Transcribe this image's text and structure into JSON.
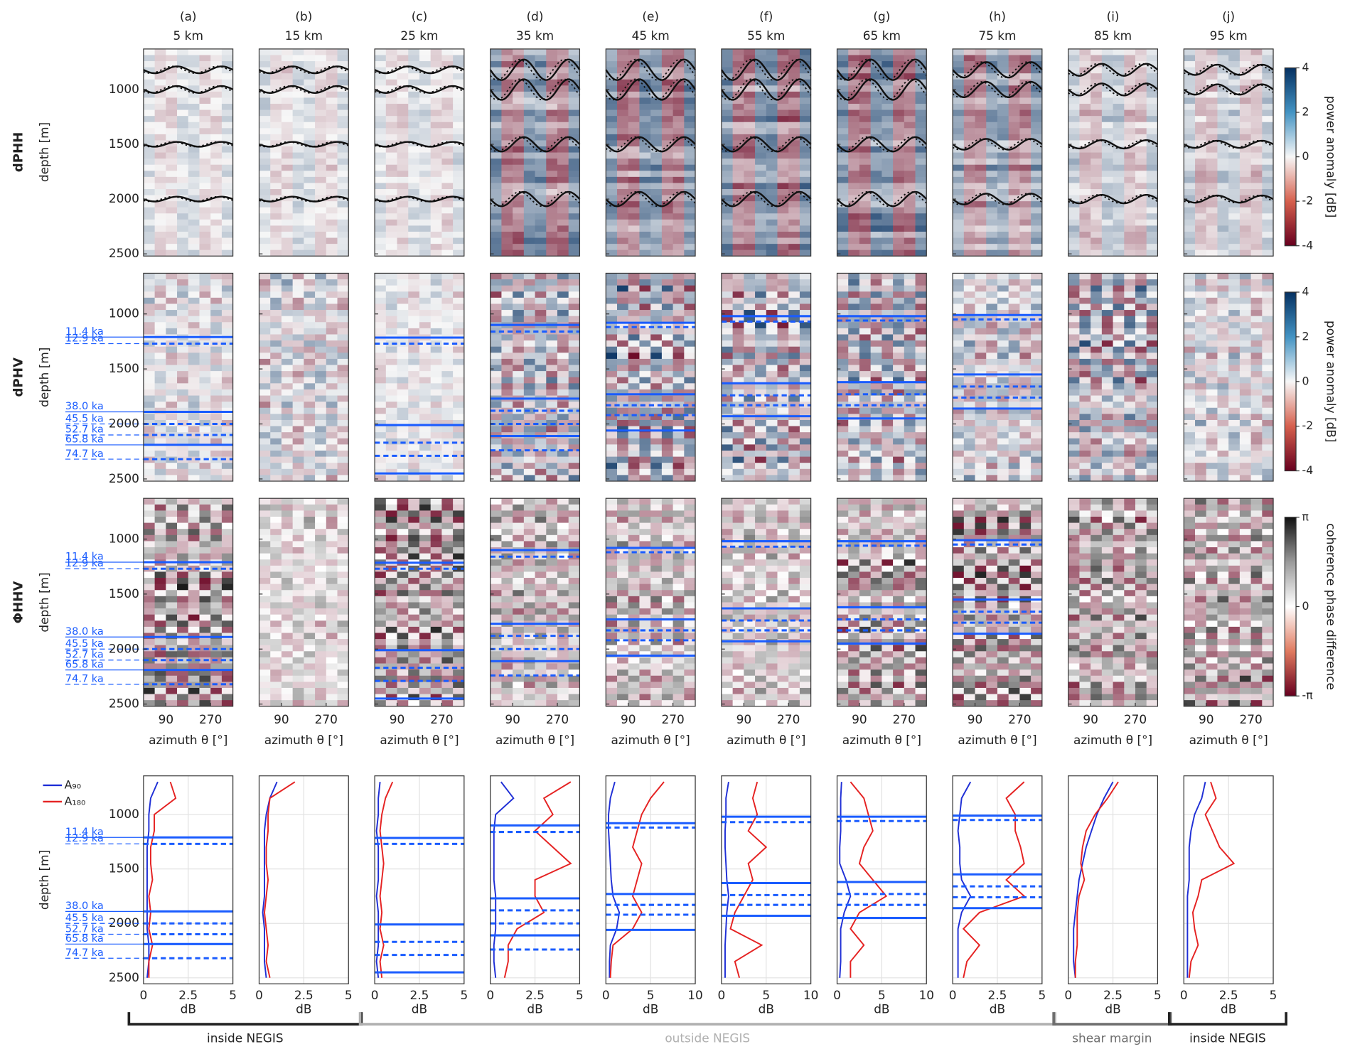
{
  "chart_data": {
    "type": "panel-grid",
    "ylabel": "depth [m]",
    "ylim": [
      630,
      2520
    ],
    "yticks": [
      1000,
      1500,
      2000,
      2500
    ],
    "profile_ylim": [
      645,
      2555
    ],
    "azimuth_xlim": [
      0,
      360
    ],
    "azimuth_xticks": [
      90,
      270
    ],
    "azimuth_label": "azimuth θ [°]",
    "profile_xlabel": "dB",
    "depths": [
      700,
      850,
      1000,
      1150,
      1300,
      1450,
      1600,
      1750,
      1900,
      2050,
      2200,
      2350,
      2500
    ],
    "series_names": [
      {
        "name": "A₉₀",
        "color": "#1f2fd6"
      },
      {
        "name": "A₁₈₀",
        "color": "#e52222"
      }
    ],
    "rows": [
      {
        "title": "dPHH",
        "colorbar_label": "power anomaly [dB]",
        "clim": [
          -4,
          4
        ],
        "cticks": [
          4,
          2,
          0,
          -2,
          -4
        ]
      },
      {
        "title": "dPHV",
        "colorbar_label": "power anomaly [dB]",
        "clim": [
          -4,
          4
        ],
        "cticks": [
          4,
          2,
          0,
          -2,
          -4
        ]
      },
      {
        "title": "ΦHHV",
        "colorbar_label": "coherence phase difference",
        "clim": [
          -3.141593,
          3.141593
        ],
        "cticks": [
          {
            "value": 3.141593,
            "label": "π"
          },
          0,
          {
            "value": -3.141593,
            "label": "-π"
          }
        ]
      }
    ],
    "regions": [
      {
        "label": "inside NEGIS",
        "color": "#222222"
      },
      {
        "label": "outside NEGIS",
        "color": "#b0b0b0"
      },
      {
        "label": "shear margin",
        "color": "#6e6e6e"
      },
      {
        "label": "inside NEGIS",
        "color": "#222222"
      }
    ],
    "columns": [
      {
        "label": "(a)",
        "distance": "5 km",
        "xlim": [
          0,
          5
        ],
        "xticks": [
          0,
          2.5,
          5
        ],
        "horizons": [
          {
            "depth": 1210,
            "style": "solid",
            "label": "11.4 ka"
          },
          {
            "depth": 1270,
            "style": "dashed",
            "label": "12.9 ka"
          },
          {
            "depth": 1890,
            "style": "solid",
            "label": "38.0 ka"
          },
          {
            "depth": 2000,
            "style": "dashed",
            "label": "45.5 ka"
          },
          {
            "depth": 2100,
            "style": "dashed",
            "label": "52.7 ka"
          },
          {
            "depth": 2190,
            "style": "solid",
            "label": "65.8 ka"
          },
          {
            "depth": 2320,
            "style": "dashed",
            "label": "74.7 ka"
          }
        ],
        "series": [
          {
            "values": [
              0.8,
              0.4,
              0.3,
              0.3,
              0.2,
              0.2,
              0.2,
              0.2,
              0.2,
              0.2,
              0.3,
              0.3,
              0.2
            ]
          },
          {
            "values": [
              1.5,
              1.8,
              0.6,
              0.6,
              0.4,
              0.4,
              0.5,
              0.3,
              0.4,
              0.3,
              0.5,
              0.3,
              0.3
            ]
          }
        ]
      },
      {
        "label": "(b)",
        "distance": "15 km",
        "xlim": [
          0,
          5
        ],
        "xticks": [
          0,
          2.5,
          5
        ],
        "horizons": [],
        "series": [
          {
            "values": [
              1.0,
              0.6,
              0.4,
              0.3,
              0.3,
              0.3,
              0.3,
              0.3,
              0.2,
              0.3,
              0.3,
              0.3,
              0.4
            ]
          },
          {
            "values": [
              2.0,
              0.6,
              0.5,
              0.5,
              0.4,
              0.4,
              0.5,
              0.4,
              0.3,
              0.4,
              0.5,
              0.4,
              0.6
            ]
          }
        ]
      },
      {
        "label": "(c)",
        "distance": "25 km",
        "xlim": [
          0,
          5
        ],
        "xticks": [
          0,
          2.5,
          5
        ],
        "horizons": [
          {
            "depth": 1215,
            "style": "solid"
          },
          {
            "depth": 1270,
            "style": "dashed"
          },
          {
            "depth": 2010,
            "style": "solid"
          },
          {
            "depth": 2170,
            "style": "dashed"
          },
          {
            "depth": 2290,
            "style": "dashed"
          },
          {
            "depth": 2450,
            "style": "solid"
          }
        ],
        "series": [
          {
            "values": [
              0.3,
              0.2,
              0.2,
              0.1,
              0.2,
              0.2,
              0.2,
              0.1,
              0.2,
              0.2,
              0.2,
              0.1,
              0.2
            ]
          },
          {
            "values": [
              1.0,
              0.6,
              0.4,
              0.3,
              0.4,
              0.5,
              0.4,
              0.3,
              0.4,
              0.3,
              0.5,
              0.3,
              0.4
            ]
          }
        ]
      },
      {
        "label": "(d)",
        "distance": "35 km",
        "xlim": [
          0,
          5
        ],
        "xticks": [
          0,
          2.5,
          5
        ],
        "horizons": [
          {
            "depth": 1100,
            "style": "solid"
          },
          {
            "depth": 1160,
            "style": "dashed"
          },
          {
            "depth": 1770,
            "style": "solid"
          },
          {
            "depth": 1880,
            "style": "dashed"
          },
          {
            "depth": 2000,
            "style": "dashed"
          },
          {
            "depth": 2110,
            "style": "solid"
          },
          {
            "depth": 2240,
            "style": "dashed"
          }
        ],
        "series": [
          {
            "values": [
              0.6,
              1.3,
              0.3,
              0.2,
              0.2,
              0.2,
              0.2,
              0.3,
              0.3,
              0.3,
              0.2,
              0.2,
              0.3
            ]
          },
          {
            "values": [
              4.5,
              3.0,
              3.5,
              2.5,
              3.5,
              4.5,
              2.5,
              2.5,
              3.0,
              1.5,
              1.0,
              1.0,
              0.8
            ]
          }
        ]
      },
      {
        "label": "(e)",
        "distance": "45 km",
        "xlim": [
          0,
          10
        ],
        "xticks": [
          0,
          5,
          10
        ],
        "horizons": [
          {
            "depth": 1080,
            "style": "solid"
          },
          {
            "depth": 1120,
            "style": "dashed"
          },
          {
            "depth": 1730,
            "style": "solid"
          },
          {
            "depth": 1830,
            "style": "dashed"
          },
          {
            "depth": 1920,
            "style": "dashed"
          },
          {
            "depth": 2060,
            "style": "solid"
          }
        ],
        "series": [
          {
            "values": [
              1.0,
              0.5,
              0.3,
              0.3,
              0.4,
              0.5,
              0.6,
              0.8,
              1.5,
              1.2,
              0.5,
              0.4,
              0.4
            ]
          },
          {
            "values": [
              6.5,
              5.0,
              4.0,
              3.5,
              3.0,
              4.0,
              3.5,
              3.0,
              4.0,
              3.0,
              0.8,
              0.6,
              0.5
            ]
          }
        ]
      },
      {
        "label": "(f)",
        "distance": "55 km",
        "xlim": [
          0,
          10
        ],
        "xticks": [
          0,
          5,
          10
        ],
        "horizons": [
          {
            "depth": 1020,
            "style": "solid"
          },
          {
            "depth": 1070,
            "style": "dashed"
          },
          {
            "depth": 1630,
            "style": "solid"
          },
          {
            "depth": 1740,
            "style": "dashed"
          },
          {
            "depth": 1830,
            "style": "dashed"
          },
          {
            "depth": 1930,
            "style": "solid"
          }
        ],
        "series": [
          {
            "values": [
              0.8,
              0.5,
              0.5,
              0.4,
              0.4,
              0.5,
              0.6,
              0.8,
              0.6,
              0.5,
              0.4,
              0.4,
              0.4
            ]
          },
          {
            "values": [
              4.0,
              3.5,
              4.0,
              3.0,
              5.0,
              3.0,
              3.5,
              2.5,
              1.5,
              1.0,
              4.5,
              1.5,
              2.0
            ]
          }
        ]
      },
      {
        "label": "(g)",
        "distance": "65 km",
        "xlim": [
          0,
          10
        ],
        "xticks": [
          0,
          5,
          10
        ],
        "horizons": [
          {
            "depth": 1020,
            "style": "solid"
          },
          {
            "depth": 1060,
            "style": "dashed"
          },
          {
            "depth": 1620,
            "style": "solid"
          },
          {
            "depth": 1730,
            "style": "dashed"
          },
          {
            "depth": 1830,
            "style": "dashed"
          },
          {
            "depth": 1950,
            "style": "solid"
          }
        ],
        "series": [
          {
            "values": [
              0.5,
              0.4,
              0.4,
              0.4,
              0.3,
              0.3,
              1.0,
              1.5,
              0.8,
              0.4,
              0.4,
              0.4,
              0.3
            ]
          },
          {
            "values": [
              1.5,
              3.0,
              3.5,
              4.0,
              3.0,
              2.5,
              4.0,
              5.5,
              2.5,
              1.5,
              3.0,
              1.5,
              1.5
            ]
          }
        ]
      },
      {
        "label": "(h)",
        "distance": "75 km",
        "xlim": [
          0,
          5
        ],
        "xticks": [
          0,
          2.5,
          5
        ],
        "horizons": [
          {
            "depth": 1010,
            "style": "solid"
          },
          {
            "depth": 1050,
            "style": "dashed"
          },
          {
            "depth": 1550,
            "style": "solid"
          },
          {
            "depth": 1660,
            "style": "dashed"
          },
          {
            "depth": 1760,
            "style": "dashed"
          },
          {
            "depth": 1860,
            "style": "solid"
          }
        ],
        "series": [
          {
            "values": [
              1.0,
              0.5,
              0.4,
              0.3,
              0.4,
              0.4,
              0.5,
              1.0,
              0.5,
              0.3,
              0.3,
              0.3,
              0.3
            ]
          },
          {
            "values": [
              4.0,
              3.0,
              3.5,
              3.5,
              3.8,
              4.0,
              3.0,
              4.0,
              1.5,
              0.6,
              1.5,
              0.8,
              0.6
            ]
          }
        ]
      },
      {
        "label": "(i)",
        "distance": "85 km",
        "xlim": [
          0,
          5
        ],
        "xticks": [
          0,
          2.5,
          5
        ],
        "horizons": [],
        "series": [
          {
            "values": [
              2.5,
              2.0,
              1.6,
              1.3,
              1.0,
              0.8,
              0.6,
              0.5,
              0.4,
              0.3,
              0.3,
              0.3,
              0.4
            ]
          },
          {
            "values": [
              2.8,
              2.2,
              1.5,
              1.0,
              0.8,
              0.7,
              0.9,
              0.6,
              0.5,
              0.5,
              0.5,
              0.4,
              0.4
            ]
          }
        ]
      },
      {
        "label": "(j)",
        "distance": "95 km",
        "xlim": [
          0,
          5
        ],
        "xticks": [
          0,
          2.5,
          5
        ],
        "horizons": [],
        "series": [
          {
            "values": [
              1.2,
              1.0,
              0.6,
              0.4,
              0.3,
              0.3,
              0.3,
              0.2,
              0.2,
              0.2,
              0.2,
              0.2,
              0.2
            ]
          },
          {
            "values": [
              1.5,
              1.8,
              1.2,
              1.6,
              2.0,
              2.8,
              1.0,
              0.8,
              0.5,
              0.6,
              0.8,
              0.4,
              0.3
            ]
          }
        ]
      }
    ]
  }
}
